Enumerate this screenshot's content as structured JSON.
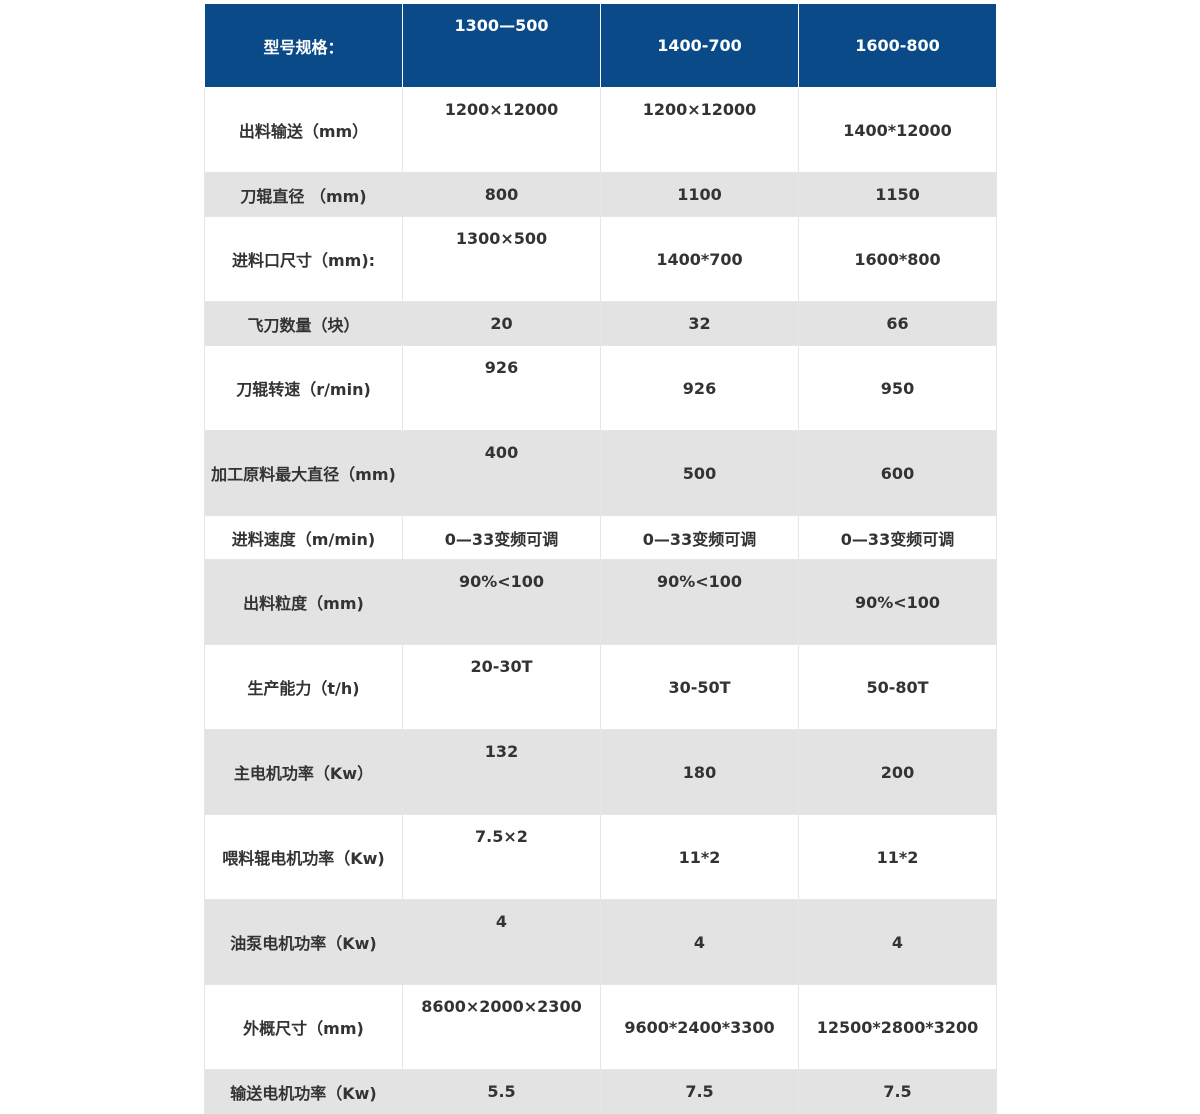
{
  "colors": {
    "header_bg": "#0a4a89",
    "stripe": "#e3e3e3"
  },
  "header": [
    "型号规格：",
    "1300—500",
    "1400-700",
    "1600-800"
  ],
  "rows": [
    [
      "出料输送（mm）",
      "1200×12000",
      "1200×12000",
      "1400*12000"
    ],
    [
      "刀辊直径 （mm)",
      "800",
      "1100",
      "1150"
    ],
    [
      "进料口尺寸（mm):",
      "1300×500",
      "1400*700",
      "1600*800"
    ],
    [
      "飞刀数量（块）",
      "20",
      "32",
      "66"
    ],
    [
      "刀辊转速（r/min)",
      "926",
      "926",
      "950"
    ],
    [
      "加工原料最大直径（mm)",
      "400",
      "500",
      "600"
    ],
    [
      "进料速度（m/min)",
      "0—33变频可调",
      "0—33变频可调",
      "0—33变频可调"
    ],
    [
      "出料粒度（mm)",
      "90%<100",
      "90%<100",
      "90%<100"
    ],
    [
      "生产能力（t/h)",
      "20-30T",
      "30-50T",
      "50-80T"
    ],
    [
      "主电机功率（Kw）",
      "132",
      "180",
      "200"
    ],
    [
      "喂料辊电机功率（Kw)",
      "7.5×2",
      "11*2",
      "11*2"
    ],
    [
      "油泵电机功率（Kw)",
      "4",
      "4",
      "4"
    ],
    [
      "外概尺寸（mm)",
      "8600×2000×2300",
      "9600*2400*3300",
      "12500*2800*3200"
    ],
    [
      "输送电机功率（Kw)",
      "5.5",
      "7.5",
      "7.5"
    ]
  ]
}
